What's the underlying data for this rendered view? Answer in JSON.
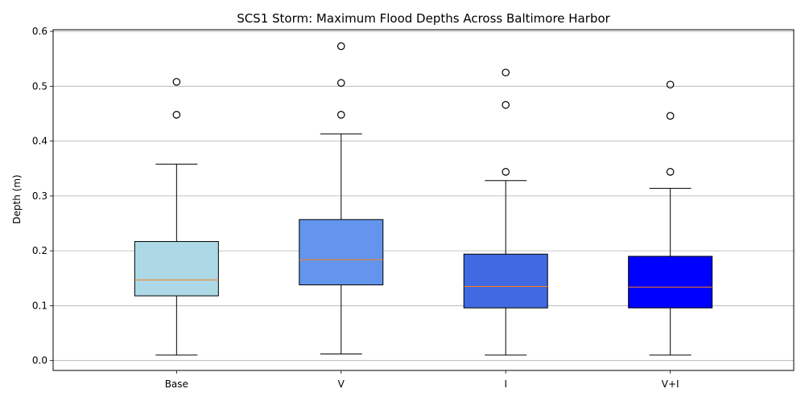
{
  "chart_data": {
    "type": "box",
    "title": "SCS1 Storm: Maximum Flood Depths Across Baltimore Harbor",
    "xlabel": "",
    "ylabel": "Depth (m)",
    "ylim": [
      -0.018,
      0.603
    ],
    "yticks": [
      0.0,
      0.1,
      0.2,
      0.3,
      0.4,
      0.5,
      0.6
    ],
    "ytick_labels": [
      "0.0",
      "0.1",
      "0.2",
      "0.3",
      "0.4",
      "0.5",
      "0.6"
    ],
    "grid": "y",
    "categories": [
      "Base",
      "V",
      "I",
      "V+I"
    ],
    "boxes": [
      {
        "category": "Base",
        "color": "#add8e6",
        "whisker_low": 0.01,
        "q1": 0.118,
        "median": 0.147,
        "q3": 0.217,
        "whisker_high": 0.358,
        "outliers": [
          0.448,
          0.508
        ]
      },
      {
        "category": "V",
        "color": "#6495ed",
        "whisker_low": 0.012,
        "q1": 0.138,
        "median": 0.184,
        "q3": 0.257,
        "whisker_high": 0.413,
        "outliers": [
          0.448,
          0.506,
          0.573
        ]
      },
      {
        "category": "I",
        "color": "#4169e1",
        "whisker_low": 0.01,
        "q1": 0.096,
        "median": 0.135,
        "q3": 0.194,
        "whisker_high": 0.328,
        "outliers": [
          0.344,
          0.466,
          0.525
        ]
      },
      {
        "category": "V+I",
        "color": "#0000ff",
        "whisker_low": 0.01,
        "q1": 0.096,
        "median": 0.134,
        "q3": 0.19,
        "whisker_high": 0.314,
        "outliers": [
          0.344,
          0.446,
          0.503
        ]
      }
    ],
    "median_color": "#ff7f0e"
  }
}
